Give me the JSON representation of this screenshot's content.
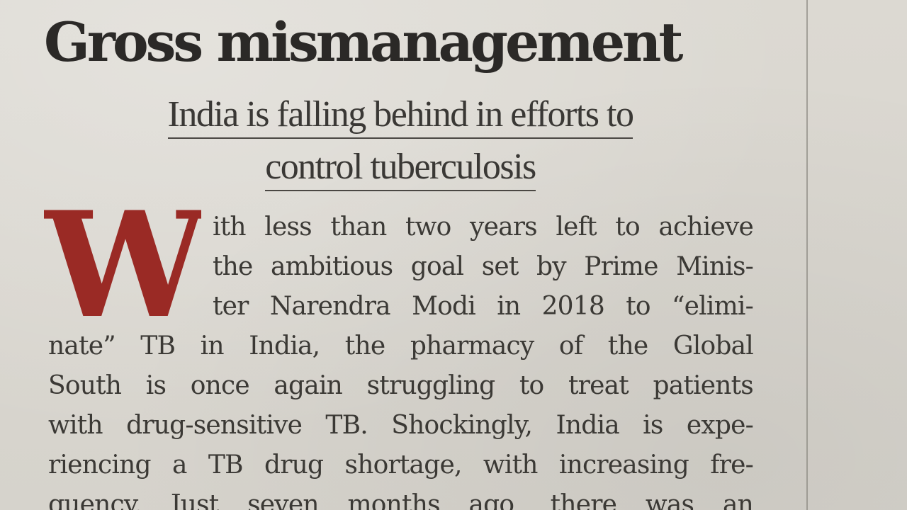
{
  "article": {
    "headline": "Gross mismanagement",
    "subhead_lines": [
      "India is falling behind in efforts to",
      "control tuberculosis"
    ],
    "dropcap": "W",
    "body_lines": [
      "ith less than two years left to achieve",
      "the ambitious goal set by Prime Minis-",
      "ter Narendra Modi in 2018 to “elimi-",
      "nate” TB in India, the pharmacy of the Global",
      "South is once again struggling to treat patients",
      "with drug-sensitive TB. Shockingly, India is expe-",
      "riencing a TB drug shortage, with increasing fre-",
      "quency. Just seven months ago, there was an"
    ]
  },
  "colors": {
    "paper": "#d9d6cf",
    "ink": "#3b3935",
    "dropcap": "#9a2a25",
    "rule": "#8a8780"
  }
}
